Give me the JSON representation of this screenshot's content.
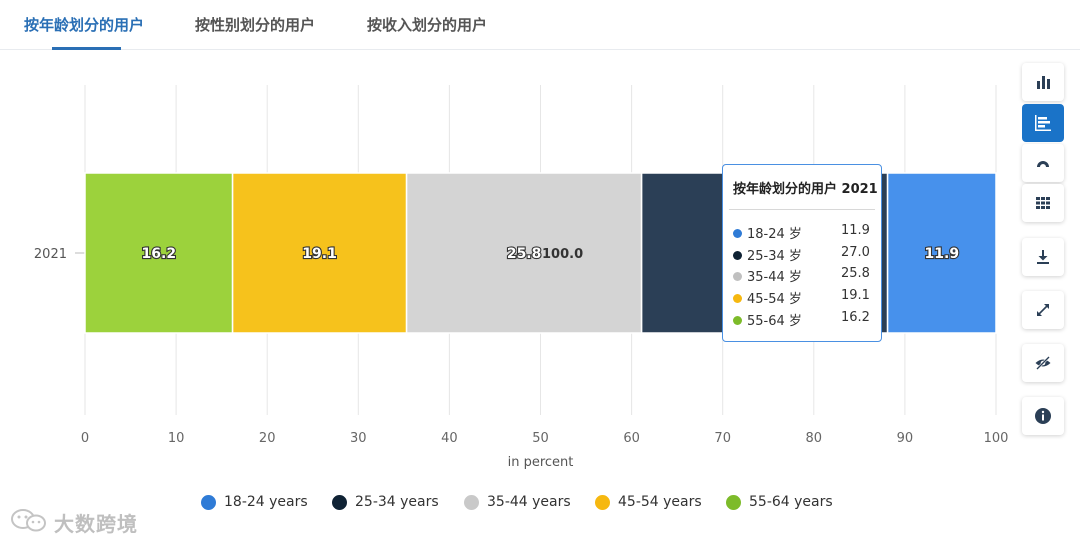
{
  "tabs": [
    {
      "label": "按年龄划分的用户",
      "active": true
    },
    {
      "label": "按性别划分的用户",
      "active": false
    },
    {
      "label": "按收入划分的用户",
      "active": false
    }
  ],
  "chart_data": {
    "type": "bar",
    "orientation": "horizontal",
    "stacked": true,
    "categories": [
      "2021"
    ],
    "series": [
      {
        "name": "55-64 years",
        "values": [
          16.2
        ],
        "color": "#9cd23c"
      },
      {
        "name": "45-54 years",
        "values": [
          19.1
        ],
        "color": "#f6c21c"
      },
      {
        "name": "35-44 years",
        "values": [
          25.8
        ],
        "color": "#d4d4d4"
      },
      {
        "name": "25-34 years",
        "values": [
          27.0
        ],
        "color": "#2b3f56"
      },
      {
        "name": "18-24 years",
        "values": [
          11.9
        ],
        "color": "#4791ec"
      }
    ],
    "data_labels": [
      "16.2",
      "19.1",
      "25.8",
      "11.9"
    ],
    "total_label": "100.0",
    "xlabel": "in percent",
    "xlim": [
      0,
      100
    ],
    "xticks": [
      "0",
      "10",
      "20",
      "30",
      "40",
      "50",
      "60",
      "70",
      "80",
      "90",
      "100"
    ],
    "grid": true,
    "legend": [
      {
        "label": "18-24 years",
        "color": "#2f7bd6"
      },
      {
        "label": "25-34 years",
        "color": "#0f2234"
      },
      {
        "label": "35-44 years",
        "color": "#c9c9c9"
      },
      {
        "label": "45-54 years",
        "color": "#f6b810"
      },
      {
        "label": "55-64 years",
        "color": "#7dbb2a"
      }
    ],
    "legend_position": "bottom"
  },
  "tooltip": {
    "title": "按年龄划分的用户 2021",
    "rows": [
      {
        "label": "18-24 岁",
        "value": "11.9",
        "color": "#2f7bd6"
      },
      {
        "label": "25-34 岁",
        "value": "27.0",
        "color": "#0f2234"
      },
      {
        "label": "35-44 岁",
        "value": "25.8",
        "color": "#c0c0c0"
      },
      {
        "label": "45-54 岁",
        "value": "19.1",
        "color": "#f6b810"
      },
      {
        "label": "55-64 岁",
        "value": "16.2",
        "color": "#7dbb2a"
      }
    ]
  },
  "toolbar": [
    {
      "icon": "column-chart-icon",
      "active": false
    },
    {
      "icon": "bar-chart-icon",
      "active": true
    },
    {
      "icon": "semicircle-chart-icon",
      "active": false
    },
    {
      "icon": "table-icon",
      "active": false
    },
    {
      "icon": "download-icon",
      "active": false
    },
    {
      "icon": "fullscreen-icon",
      "active": false
    },
    {
      "icon": "hide-icon",
      "active": false
    },
    {
      "icon": "info-icon",
      "active": false
    }
  ],
  "watermark": {
    "text": "大数跨境"
  }
}
